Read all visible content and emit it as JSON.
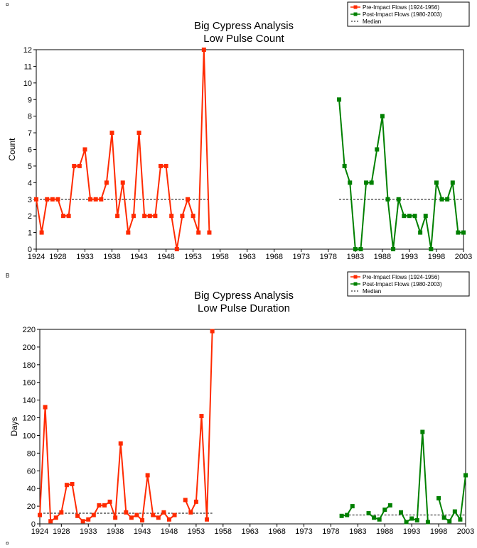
{
  "corner_labels": [
    "¤",
    "B",
    "¤"
  ],
  "legend": [
    {
      "label": "Pre-Impact Flows (1924-1956)",
      "color": "#ff2a00",
      "style": "line-square"
    },
    {
      "label": "Post-Impact Flows (1980-2003)",
      "color": "#008000",
      "style": "line-square"
    },
    {
      "label": "Median",
      "color": "#000000",
      "style": "dashed"
    }
  ],
  "chart_data": [
    {
      "type": "line",
      "title": "Big Cypress Analysis",
      "subtitle": "Low Pulse Count",
      "xlabel": "",
      "ylabel": "Count",
      "xlim": [
        1924,
        2003
      ],
      "ylim": [
        0,
        12
      ],
      "xticks": [
        1924,
        1928,
        1933,
        1938,
        1943,
        1948,
        1953,
        1958,
        1963,
        1968,
        1973,
        1978,
        1983,
        1988,
        1993,
        1998,
        2003
      ],
      "yticks": [
        0,
        1,
        2,
        3,
        4,
        5,
        6,
        7,
        8,
        9,
        10,
        11,
        12
      ],
      "series": [
        {
          "name": "Pre-Impact Flows (1924-1956)",
          "color": "#ff2a00",
          "x": [
            1924,
            1925,
            1926,
            1927,
            1928,
            1929,
            1930,
            1931,
            1932,
            1933,
            1934,
            1935,
            1936,
            1937,
            1938,
            1939,
            1940,
            1941,
            1942,
            1943,
            1944,
            1945,
            1946,
            1947,
            1948,
            1949,
            1950,
            1951,
            1952,
            1953,
            1954,
            1955,
            1956
          ],
          "y": [
            3,
            1,
            3,
            3,
            3,
            2,
            2,
            5,
            5,
            6,
            3,
            3,
            3,
            4,
            7,
            2,
            4,
            1,
            2,
            7,
            2,
            2,
            2,
            5,
            5,
            2,
            0,
            2,
            3,
            2,
            1,
            12,
            1
          ]
        },
        {
          "name": "Post-Impact Flows (1980-2003)",
          "color": "#008000",
          "x": [
            1980,
            1981,
            1982,
            1983,
            1984,
            1985,
            1986,
            1987,
            1988,
            1989,
            1990,
            1991,
            1992,
            1993,
            1994,
            1995,
            1996,
            1997,
            1998,
            1999,
            2000,
            2001,
            2002,
            2003
          ],
          "y": [
            9,
            5,
            4,
            0,
            0,
            4,
            4,
            6,
            8,
            3,
            0,
            3,
            2,
            2,
            2,
            1,
            2,
            0,
            4,
            3,
            3,
            4,
            1,
            1
          ]
        }
      ],
      "medians": [
        {
          "x": [
            1924,
            1956
          ],
          "y": 3
        },
        {
          "x": [
            1980,
            2003
          ],
          "y": 3
        }
      ]
    },
    {
      "type": "line",
      "title": "Big Cypress Analysis",
      "subtitle": "Low Pulse Duration",
      "xlabel": "",
      "ylabel": "Days",
      "xlim": [
        1924,
        2003
      ],
      "ylim": [
        0,
        220
      ],
      "xticks": [
        1924,
        1928,
        1933,
        1938,
        1943,
        1948,
        1953,
        1958,
        1963,
        1968,
        1973,
        1978,
        1983,
        1988,
        1993,
        1998,
        2003
      ],
      "yticks": [
        0,
        20,
        40,
        60,
        80,
        100,
        120,
        140,
        160,
        180,
        200,
        220
      ],
      "series": [
        {
          "name": "Pre-Impact Flows (1924-1956)",
          "color": "#ff2a00",
          "x": [
            1924,
            1925,
            1926,
            1927,
            1928,
            1929,
            1930,
            1931,
            1932,
            1933,
            1934,
            1935,
            1936,
            1937,
            1938,
            1939,
            1940,
            1941,
            1942,
            1943,
            1944,
            1945,
            1946,
            1947,
            1948,
            1949,
            1950,
            1951,
            1952,
            1953,
            1954,
            1955,
            1956
          ],
          "y": [
            10,
            132,
            3,
            7,
            13,
            44,
            45,
            9,
            3,
            5,
            10,
            21,
            21,
            25,
            7,
            91,
            13,
            7,
            10,
            4,
            55,
            10,
            7,
            13,
            5,
            10,
            null,
            27,
            13,
            25,
            122,
            5,
            218
          ]
        },
        {
          "name": "Post-Impact Flows (1980-2003)",
          "color": "#008000",
          "x": [
            1980,
            1981,
            1982,
            1983,
            1984,
            1985,
            1986,
            1987,
            1988,
            1989,
            1990,
            1991,
            1992,
            1993,
            1994,
            1995,
            1996,
            1997,
            1998,
            1999,
            2000,
            2001,
            2002,
            2003
          ],
          "y": [
            9,
            10,
            20,
            null,
            null,
            12,
            7,
            5,
            16,
            21,
            null,
            13,
            2,
            6,
            4,
            104,
            2,
            null,
            29,
            7,
            3,
            14,
            5,
            55
          ]
        }
      ],
      "medians": [
        {
          "x": [
            1924,
            1956
          ],
          "y": 12
        },
        {
          "x": [
            1980,
            2003
          ],
          "y": 10
        }
      ]
    }
  ]
}
